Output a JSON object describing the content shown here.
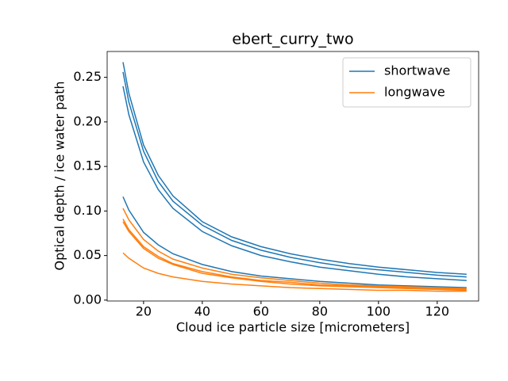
{
  "chart_data": {
    "type": "line",
    "title": "ebert_curry_two",
    "x_label": "Cloud ice particle size [micrometers]",
    "y_label": "Optical depth / ice water path",
    "x": [
      13,
      15,
      20,
      25,
      30,
      40,
      50,
      60,
      70,
      80,
      90,
      100,
      110,
      120,
      130
    ],
    "series": [
      {
        "name": "shortwave",
        "color": "#1f77b4",
        "lines": [
          [
            0.267,
            0.232,
            0.174,
            0.14,
            0.117,
            0.088,
            0.071,
            0.06,
            0.052,
            0.046,
            0.041,
            0.037,
            0.034,
            0.031,
            0.029
          ],
          [
            0.256,
            0.222,
            0.167,
            0.133,
            0.111,
            0.084,
            0.067,
            0.056,
            0.048,
            0.042,
            0.037,
            0.034,
            0.031,
            0.028,
            0.026
          ],
          [
            0.24,
            0.208,
            0.155,
            0.124,
            0.103,
            0.077,
            0.061,
            0.05,
            0.043,
            0.037,
            0.033,
            0.029,
            0.026,
            0.024,
            0.022
          ],
          [
            0.116,
            0.101,
            0.076,
            0.062,
            0.052,
            0.04,
            0.032,
            0.027,
            0.024,
            0.021,
            0.019,
            0.017,
            0.016,
            0.015,
            0.014
          ]
        ]
      },
      {
        "name": "longwave",
        "color": "#ff7f0e",
        "lines": [
          [
            0.103,
            0.09,
            0.068,
            0.055,
            0.046,
            0.036,
            0.029,
            0.025,
            0.022,
            0.019,
            0.017,
            0.016,
            0.015,
            0.014,
            0.013
          ],
          [
            0.091,
            0.079,
            0.06,
            0.049,
            0.041,
            0.032,
            0.026,
            0.022,
            0.02,
            0.017,
            0.016,
            0.015,
            0.014,
            0.013,
            0.012
          ],
          [
            0.088,
            0.077,
            0.058,
            0.047,
            0.04,
            0.03,
            0.025,
            0.021,
            0.018,
            0.016,
            0.015,
            0.014,
            0.013,
            0.012,
            0.011
          ],
          [
            0.053,
            0.047,
            0.036,
            0.03,
            0.026,
            0.021,
            0.018,
            0.016,
            0.014,
            0.013,
            0.012,
            0.011,
            0.011,
            0.01,
            0.01
          ]
        ]
      }
    ],
    "xlim": [
      7.6,
      134.1
    ],
    "xticks": [
      20,
      40,
      60,
      80,
      100,
      120
    ],
    "ylim": [
      -0.001,
      0.279
    ],
    "yticks": [
      {
        "value": 0,
        "label": "0.00"
      },
      {
        "value": 0.05,
        "label": "0.05"
      },
      {
        "value": 0.1,
        "label": "0.10"
      },
      {
        "value": 0.15,
        "label": "0.15"
      },
      {
        "value": 0.2,
        "label": "0.20"
      },
      {
        "value": 0.25,
        "label": "0.25"
      }
    ],
    "legend": "upper right"
  }
}
